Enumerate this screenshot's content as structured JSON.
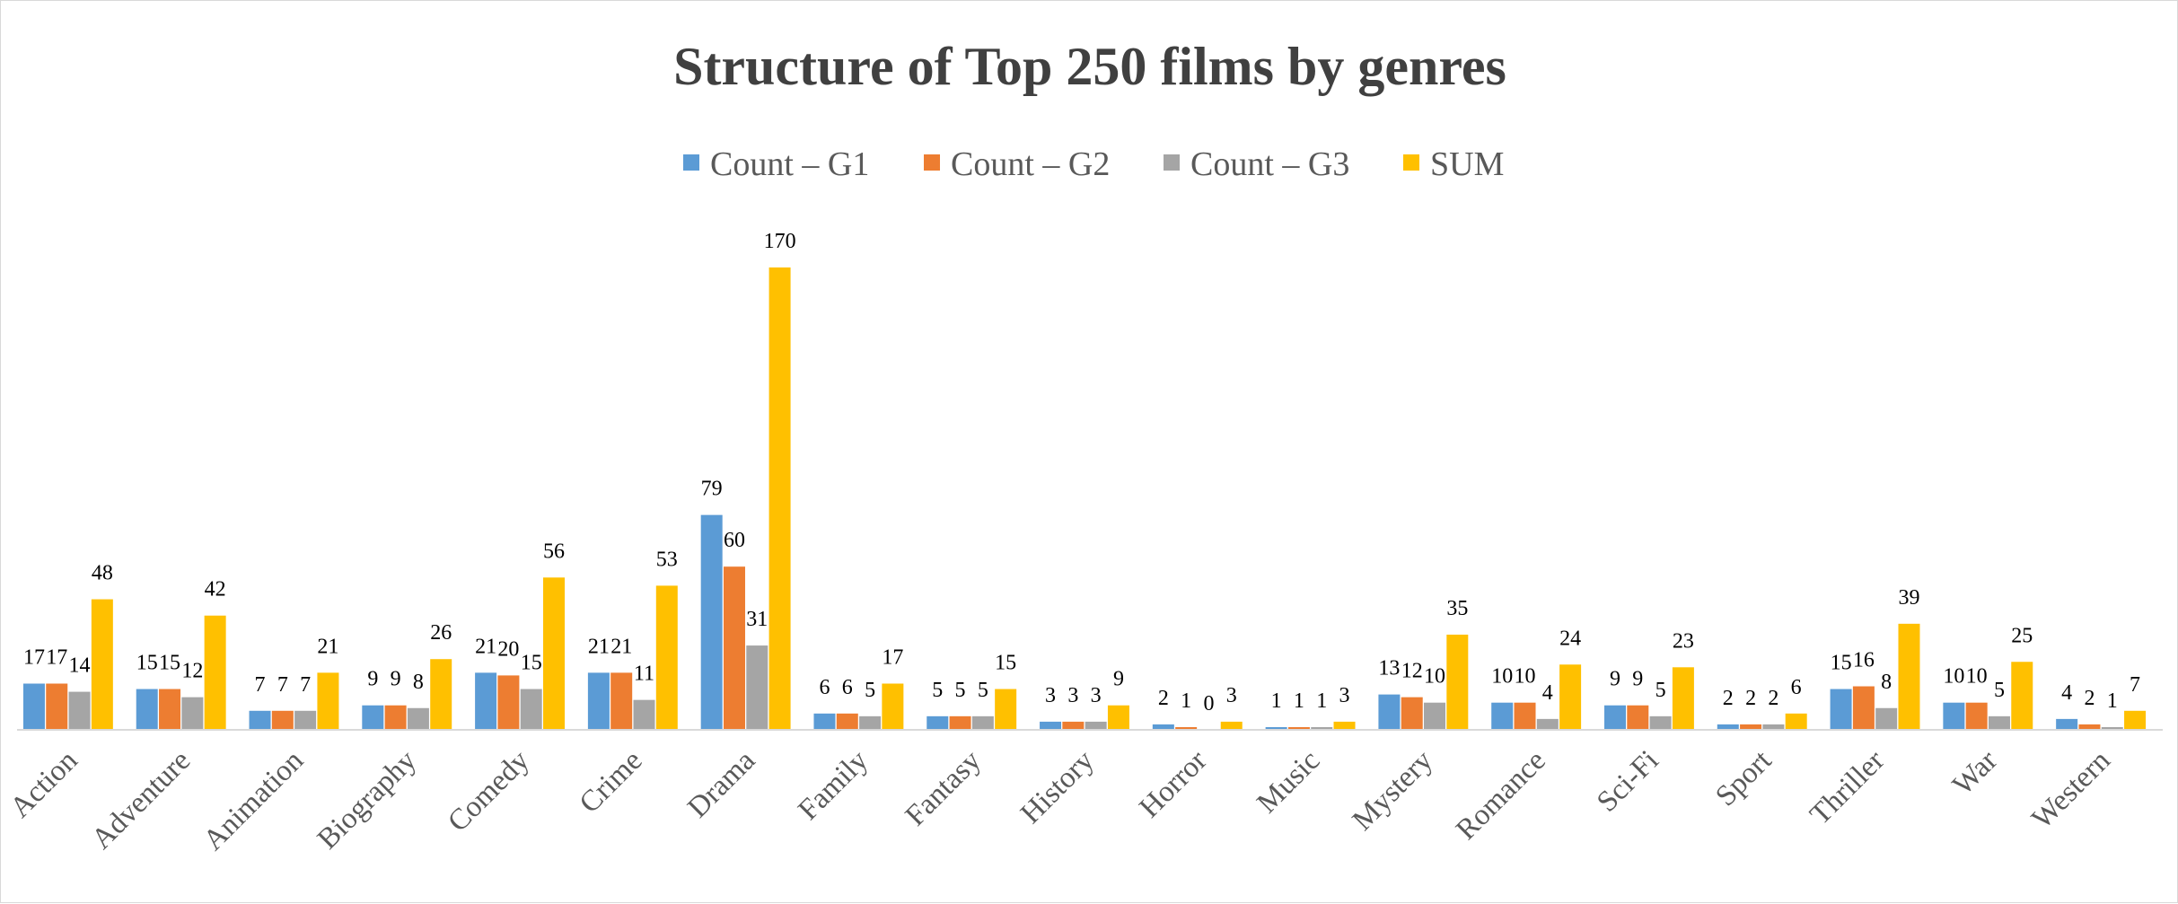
{
  "chart_data": {
    "type": "bar",
    "title": "Structure of Top 250 films by genres",
    "legend_position": "top",
    "grid": false,
    "ylim": [
      0,
      180
    ],
    "categories": [
      "Action",
      "Adventure",
      "Animation",
      "Biography",
      "Comedy",
      "Crime",
      "Drama",
      "Family",
      "Fantasy",
      "History",
      "Horror",
      "Music",
      "Mystery",
      "Romance",
      "Sci-Fi",
      "Sport",
      "Thriller",
      "War",
      "Western"
    ],
    "series": [
      {
        "name": "Count – G1",
        "color": "#5b9bd5",
        "values": [
          17,
          15,
          7,
          9,
          21,
          21,
          79,
          6,
          5,
          3,
          2,
          1,
          13,
          10,
          9,
          2,
          15,
          10,
          4
        ]
      },
      {
        "name": "Count – G2",
        "color": "#ed7d31",
        "values": [
          17,
          15,
          7,
          9,
          20,
          21,
          60,
          6,
          5,
          3,
          1,
          1,
          12,
          10,
          9,
          2,
          16,
          10,
          2
        ]
      },
      {
        "name": "Count – G3",
        "color": "#a5a5a5",
        "values": [
          14,
          12,
          7,
          8,
          15,
          11,
          31,
          5,
          5,
          3,
          0,
          1,
          10,
          4,
          5,
          2,
          8,
          5,
          1
        ]
      },
      {
        "name": "SUM",
        "color": "#ffc000",
        "values": [
          48,
          42,
          21,
          26,
          56,
          53,
          170,
          17,
          15,
          9,
          3,
          3,
          35,
          24,
          23,
          6,
          39,
          25,
          7
        ]
      }
    ]
  }
}
